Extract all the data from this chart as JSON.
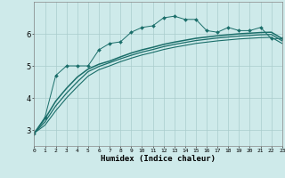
{
  "xlabel": "Humidex (Indice chaleur)",
  "background_color": "#ceeaea",
  "grid_color": "#aacccc",
  "line_color": "#1a6e6a",
  "x_values": [
    0,
    1,
    2,
    3,
    4,
    5,
    6,
    7,
    8,
    9,
    10,
    11,
    12,
    13,
    14,
    15,
    16,
    17,
    18,
    19,
    20,
    21,
    22,
    23
  ],
  "series_main": [
    2.9,
    3.4,
    4.7,
    5.0,
    5.0,
    5.0,
    5.5,
    5.7,
    5.75,
    6.05,
    6.2,
    6.25,
    6.5,
    6.55,
    6.45,
    6.45,
    6.1,
    6.05,
    6.2,
    6.1,
    6.1,
    6.2,
    5.85,
    5.85
  ],
  "series_line1": [
    2.9,
    3.35,
    3.9,
    4.3,
    4.65,
    4.9,
    5.05,
    5.15,
    5.28,
    5.4,
    5.5,
    5.58,
    5.67,
    5.74,
    5.8,
    5.86,
    5.9,
    5.94,
    5.97,
    6.0,
    6.02,
    6.04,
    6.05,
    5.85
  ],
  "series_line2": [
    2.9,
    3.25,
    3.75,
    4.15,
    4.5,
    4.82,
    4.98,
    5.1,
    5.22,
    5.33,
    5.43,
    5.51,
    5.6,
    5.67,
    5.73,
    5.79,
    5.83,
    5.87,
    5.9,
    5.93,
    5.95,
    5.97,
    5.98,
    5.78
  ],
  "series_line3": [
    2.9,
    3.15,
    3.6,
    4.0,
    4.35,
    4.68,
    4.88,
    5.0,
    5.13,
    5.24,
    5.34,
    5.42,
    5.51,
    5.58,
    5.64,
    5.7,
    5.74,
    5.78,
    5.81,
    5.84,
    5.86,
    5.88,
    5.89,
    5.7
  ],
  "ylim": [
    2.5,
    7.0
  ],
  "xlim": [
    0,
    23
  ],
  "yticks": [
    3,
    4,
    5,
    6
  ],
  "xticks": [
    0,
    1,
    2,
    3,
    4,
    5,
    6,
    7,
    8,
    9,
    10,
    11,
    12,
    13,
    14,
    15,
    16,
    17,
    18,
    19,
    20,
    21,
    22,
    23
  ]
}
